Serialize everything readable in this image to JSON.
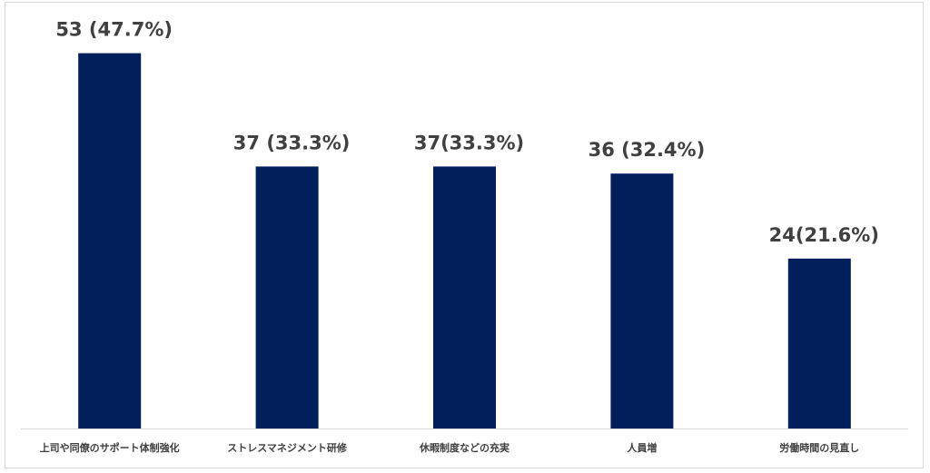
{
  "chart_data": {
    "type": "bar",
    "categories": [
      "上司や同僚のサポート体制強化",
      "ストレスマネジメント研修",
      "休暇制度などの充実",
      "人員増",
      "労働時間の見直し"
    ],
    "values": [
      53,
      37,
      37,
      36,
      24
    ],
    "value_labels": [
      "53 (47.7%)",
      "37 (33.3%)",
      "37(33.3%)",
      "36 (32.4%)",
      "24(21.6%)"
    ],
    "title": "",
    "xlabel": "",
    "ylabel": "",
    "ylim": [
      0,
      60
    ],
    "grid": false,
    "legend": "none",
    "bar_color": "#001f5b",
    "text_color": "#404040"
  }
}
